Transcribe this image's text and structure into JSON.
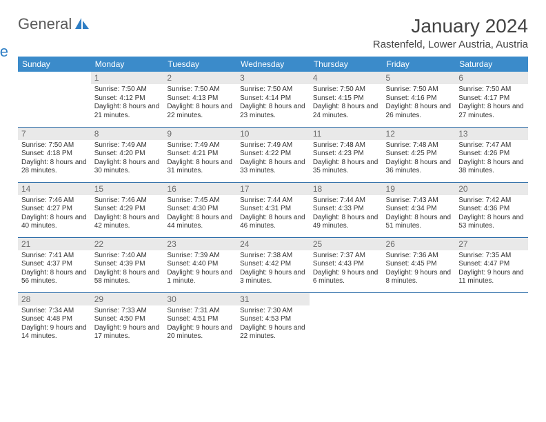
{
  "brand": {
    "word1": "General",
    "word2": "Blue"
  },
  "title": "January 2024",
  "location": "Rastenfeld, Lower Austria, Austria",
  "colors": {
    "header_bg": "#3b8bca",
    "header_text": "#ffffff",
    "daynum_bg": "#e9e9e9",
    "daynum_text": "#6a6a6a",
    "row_border": "#2d6da8",
    "brand_gray": "#5a5a5a",
    "brand_blue": "#2d7dc4"
  },
  "day_headers": [
    "Sunday",
    "Monday",
    "Tuesday",
    "Wednesday",
    "Thursday",
    "Friday",
    "Saturday"
  ],
  "weeks": [
    [
      {
        "n": "",
        "sunrise": "",
        "sunset": "",
        "daylight": ""
      },
      {
        "n": "1",
        "sunrise": "Sunrise: 7:50 AM",
        "sunset": "Sunset: 4:12 PM",
        "daylight": "Daylight: 8 hours and 21 minutes."
      },
      {
        "n": "2",
        "sunrise": "Sunrise: 7:50 AM",
        "sunset": "Sunset: 4:13 PM",
        "daylight": "Daylight: 8 hours and 22 minutes."
      },
      {
        "n": "3",
        "sunrise": "Sunrise: 7:50 AM",
        "sunset": "Sunset: 4:14 PM",
        "daylight": "Daylight: 8 hours and 23 minutes."
      },
      {
        "n": "4",
        "sunrise": "Sunrise: 7:50 AM",
        "sunset": "Sunset: 4:15 PM",
        "daylight": "Daylight: 8 hours and 24 minutes."
      },
      {
        "n": "5",
        "sunrise": "Sunrise: 7:50 AM",
        "sunset": "Sunset: 4:16 PM",
        "daylight": "Daylight: 8 hours and 26 minutes."
      },
      {
        "n": "6",
        "sunrise": "Sunrise: 7:50 AM",
        "sunset": "Sunset: 4:17 PM",
        "daylight": "Daylight: 8 hours and 27 minutes."
      }
    ],
    [
      {
        "n": "7",
        "sunrise": "Sunrise: 7:50 AM",
        "sunset": "Sunset: 4:18 PM",
        "daylight": "Daylight: 8 hours and 28 minutes."
      },
      {
        "n": "8",
        "sunrise": "Sunrise: 7:49 AM",
        "sunset": "Sunset: 4:20 PM",
        "daylight": "Daylight: 8 hours and 30 minutes."
      },
      {
        "n": "9",
        "sunrise": "Sunrise: 7:49 AM",
        "sunset": "Sunset: 4:21 PM",
        "daylight": "Daylight: 8 hours and 31 minutes."
      },
      {
        "n": "10",
        "sunrise": "Sunrise: 7:49 AM",
        "sunset": "Sunset: 4:22 PM",
        "daylight": "Daylight: 8 hours and 33 minutes."
      },
      {
        "n": "11",
        "sunrise": "Sunrise: 7:48 AM",
        "sunset": "Sunset: 4:23 PM",
        "daylight": "Daylight: 8 hours and 35 minutes."
      },
      {
        "n": "12",
        "sunrise": "Sunrise: 7:48 AM",
        "sunset": "Sunset: 4:25 PM",
        "daylight": "Daylight: 8 hours and 36 minutes."
      },
      {
        "n": "13",
        "sunrise": "Sunrise: 7:47 AM",
        "sunset": "Sunset: 4:26 PM",
        "daylight": "Daylight: 8 hours and 38 minutes."
      }
    ],
    [
      {
        "n": "14",
        "sunrise": "Sunrise: 7:46 AM",
        "sunset": "Sunset: 4:27 PM",
        "daylight": "Daylight: 8 hours and 40 minutes."
      },
      {
        "n": "15",
        "sunrise": "Sunrise: 7:46 AM",
        "sunset": "Sunset: 4:29 PM",
        "daylight": "Daylight: 8 hours and 42 minutes."
      },
      {
        "n": "16",
        "sunrise": "Sunrise: 7:45 AM",
        "sunset": "Sunset: 4:30 PM",
        "daylight": "Daylight: 8 hours and 44 minutes."
      },
      {
        "n": "17",
        "sunrise": "Sunrise: 7:44 AM",
        "sunset": "Sunset: 4:31 PM",
        "daylight": "Daylight: 8 hours and 46 minutes."
      },
      {
        "n": "18",
        "sunrise": "Sunrise: 7:44 AM",
        "sunset": "Sunset: 4:33 PM",
        "daylight": "Daylight: 8 hours and 49 minutes."
      },
      {
        "n": "19",
        "sunrise": "Sunrise: 7:43 AM",
        "sunset": "Sunset: 4:34 PM",
        "daylight": "Daylight: 8 hours and 51 minutes."
      },
      {
        "n": "20",
        "sunrise": "Sunrise: 7:42 AM",
        "sunset": "Sunset: 4:36 PM",
        "daylight": "Daylight: 8 hours and 53 minutes."
      }
    ],
    [
      {
        "n": "21",
        "sunrise": "Sunrise: 7:41 AM",
        "sunset": "Sunset: 4:37 PM",
        "daylight": "Daylight: 8 hours and 56 minutes."
      },
      {
        "n": "22",
        "sunrise": "Sunrise: 7:40 AM",
        "sunset": "Sunset: 4:39 PM",
        "daylight": "Daylight: 8 hours and 58 minutes."
      },
      {
        "n": "23",
        "sunrise": "Sunrise: 7:39 AM",
        "sunset": "Sunset: 4:40 PM",
        "daylight": "Daylight: 9 hours and 1 minute."
      },
      {
        "n": "24",
        "sunrise": "Sunrise: 7:38 AM",
        "sunset": "Sunset: 4:42 PM",
        "daylight": "Daylight: 9 hours and 3 minutes."
      },
      {
        "n": "25",
        "sunrise": "Sunrise: 7:37 AM",
        "sunset": "Sunset: 4:43 PM",
        "daylight": "Daylight: 9 hours and 6 minutes."
      },
      {
        "n": "26",
        "sunrise": "Sunrise: 7:36 AM",
        "sunset": "Sunset: 4:45 PM",
        "daylight": "Daylight: 9 hours and 8 minutes."
      },
      {
        "n": "27",
        "sunrise": "Sunrise: 7:35 AM",
        "sunset": "Sunset: 4:47 PM",
        "daylight": "Daylight: 9 hours and 11 minutes."
      }
    ],
    [
      {
        "n": "28",
        "sunrise": "Sunrise: 7:34 AM",
        "sunset": "Sunset: 4:48 PM",
        "daylight": "Daylight: 9 hours and 14 minutes."
      },
      {
        "n": "29",
        "sunrise": "Sunrise: 7:33 AM",
        "sunset": "Sunset: 4:50 PM",
        "daylight": "Daylight: 9 hours and 17 minutes."
      },
      {
        "n": "30",
        "sunrise": "Sunrise: 7:31 AM",
        "sunset": "Sunset: 4:51 PM",
        "daylight": "Daylight: 9 hours and 20 minutes."
      },
      {
        "n": "31",
        "sunrise": "Sunrise: 7:30 AM",
        "sunset": "Sunset: 4:53 PM",
        "daylight": "Daylight: 9 hours and 22 minutes."
      },
      {
        "n": "",
        "sunrise": "",
        "sunset": "",
        "daylight": ""
      },
      {
        "n": "",
        "sunrise": "",
        "sunset": "",
        "daylight": ""
      },
      {
        "n": "",
        "sunrise": "",
        "sunset": "",
        "daylight": ""
      }
    ]
  ]
}
